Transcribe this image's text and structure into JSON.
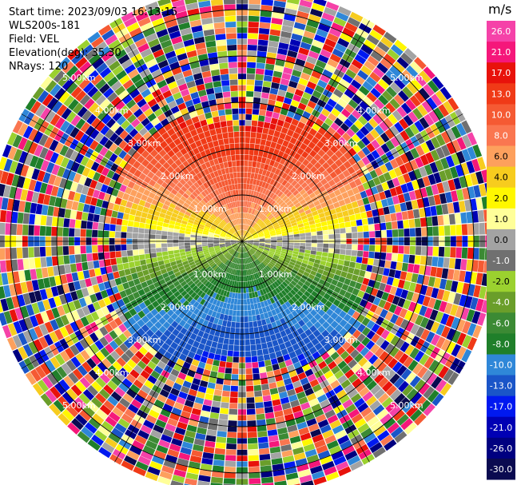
{
  "info": {
    "start_time": "Start time: 2023/09/03 16:13:15",
    "site": "WLS200s-181",
    "field": "Field: VEL",
    "elevation": "Elevation(deg): 35.30",
    "nrays": "NRays: 120"
  },
  "colorbar": {
    "unit": "m/s",
    "entries": [
      {
        "label": "26.0",
        "color": "#f542a8"
      },
      {
        "label": "21.0",
        "color": "#f5177a"
      },
      {
        "label": "17.0",
        "color": "#e8120b"
      },
      {
        "label": "13.0",
        "color": "#f03a17"
      },
      {
        "label": "10.0",
        "color": "#f55a33"
      },
      {
        "label": "8.0",
        "color": "#fa7650"
      },
      {
        "label": "6.0",
        "color": "#fda05d"
      },
      {
        "label": "4.0",
        "color": "#f7cc1e"
      },
      {
        "label": "2.0",
        "color": "#fff700"
      },
      {
        "label": "1.0",
        "color": "#ffff99"
      },
      {
        "label": "0.0",
        "color": "#a3a3a3"
      },
      {
        "label": "-1.0",
        "color": "#707070"
      },
      {
        "label": "-2.0",
        "color": "#9bd12f"
      },
      {
        "label": "-4.0",
        "color": "#6a9e2a"
      },
      {
        "label": "-6.0",
        "color": "#3b8a34"
      },
      {
        "label": "-8.0",
        "color": "#1f7f2a"
      },
      {
        "label": "-10.0",
        "color": "#2f87d8"
      },
      {
        "label": "-13.0",
        "color": "#1a55c8"
      },
      {
        "label": "-17.0",
        "color": "#0019f0"
      },
      {
        "label": "-21.0",
        "color": "#0000b4"
      },
      {
        "label": "-26.0",
        "color": "#000080"
      },
      {
        "label": "-30.0",
        "color": "#0a0a50"
      }
    ]
  },
  "chart_data": {
    "type": "heatmap",
    "projection": "polar-ppi",
    "n_rays": 120,
    "range_rings_km": [
      1,
      2,
      3,
      4,
      5
    ],
    "ring_labels": [
      "1.00km",
      "2.00km",
      "3.00km",
      "4.00km",
      "5.00km"
    ],
    "max_range_km": 5.5,
    "velocity_range": [
      -30,
      26
    ],
    "pattern": "positive velocities toward the north, negative toward the south, noise beyond ~2.5 km"
  }
}
